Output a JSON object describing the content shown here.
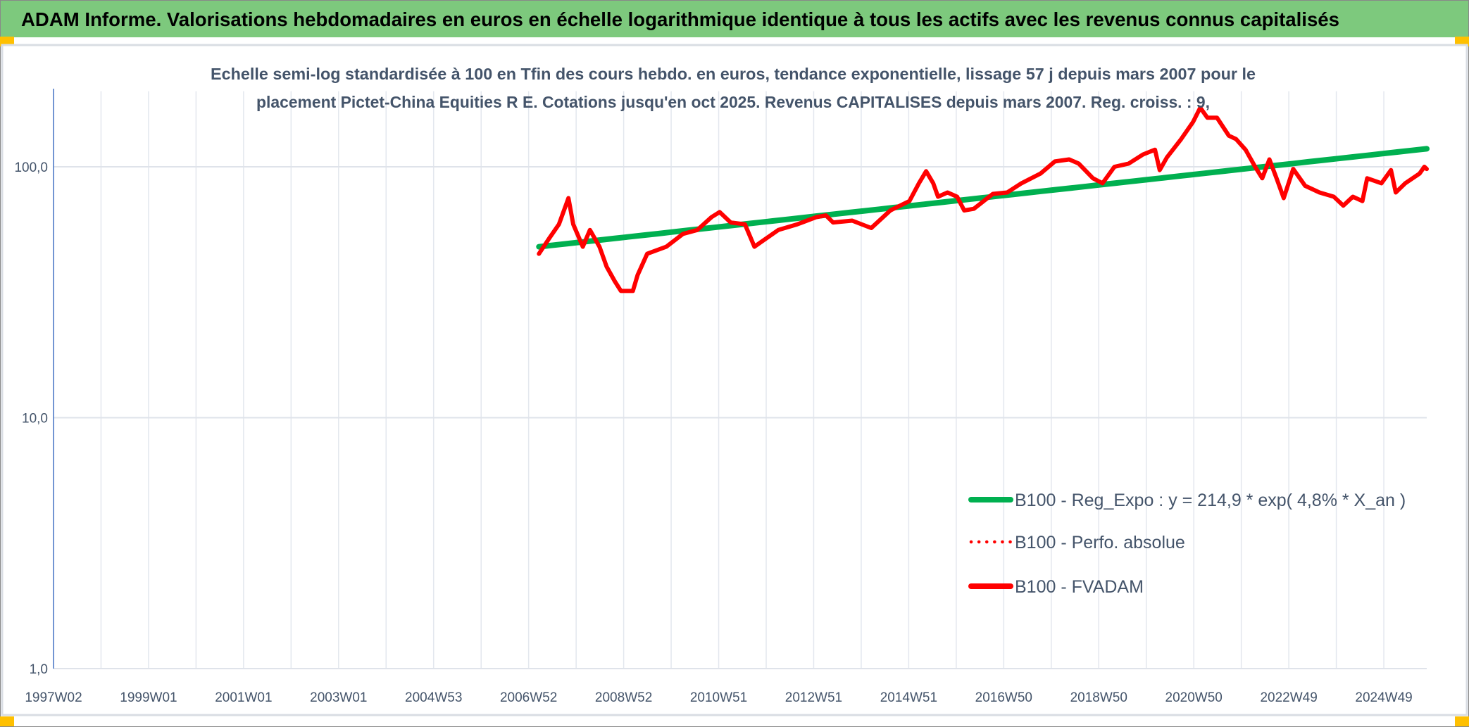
{
  "header": {
    "title": "ADAM Informe. Valorisations hebdomadaires en euros en échelle logarithmique identique à tous les actifs avec les revenus connus capitalisés",
    "bg_color": "#7dc97d",
    "corner_color": "#ffc000"
  },
  "chart_data": {
    "type": "line",
    "title_line1": "Echelle semi-log standardisée à 100 en Tfin des cours hebdo. en euros, tendance exponentielle, lissage 57 j depuis mars 2007 pour le",
    "title_line2": "placement Pictet-China Equities R E. Cotations jusqu'en oct 2025. Revenus CAPITALISES depuis mars 2007. Reg. croiss. : 9,",
    "y_scale": "log",
    "ylim": [
      1,
      200
    ],
    "y_ticks": [
      {
        "value": 1,
        "label": "1,0"
      },
      {
        "value": 10,
        "label": "10,0"
      },
      {
        "value": 100,
        "label": "100,0"
      }
    ],
    "xlim_years": [
      1997.0,
      2025.8
    ],
    "x_ticks": [
      "1997W02",
      "1999W01",
      "2001W01",
      "2003W01",
      "2004W53",
      "2006W52",
      "2008W52",
      "2010W51",
      "2012W51",
      "2014W51",
      "2016W50",
      "2018W50",
      "2020W50",
      "2022W49",
      "2024W49"
    ],
    "grid": true,
    "legend_position": "bottom-right",
    "series": [
      {
        "name": "B100 - Reg_Expo : y = 214,9 * exp( 4,8% *  X_an )",
        "color": "#00b050",
        "style": "solid",
        "points": [
          [
            2007.18,
            48
          ],
          [
            2025.8,
            118
          ]
        ]
      },
      {
        "name": "B100 - Perfo. absolue",
        "color": "#ff0000",
        "style": "dotted",
        "points": []
      },
      {
        "name": "B100 - FVADAM",
        "color": "#ff0000",
        "style": "solid",
        "points": [
          [
            2007.18,
            45
          ],
          [
            2007.4,
            52
          ],
          [
            2007.6,
            59
          ],
          [
            2007.8,
            75
          ],
          [
            2007.9,
            59
          ],
          [
            2008.1,
            48
          ],
          [
            2008.25,
            56
          ],
          [
            2008.45,
            48
          ],
          [
            2008.6,
            40
          ],
          [
            2008.77,
            35
          ],
          [
            2008.9,
            32
          ],
          [
            2009.15,
            32
          ],
          [
            2009.25,
            37
          ],
          [
            2009.45,
            45
          ],
          [
            2009.85,
            48
          ],
          [
            2010.2,
            54
          ],
          [
            2010.5,
            56
          ],
          [
            2010.8,
            63
          ],
          [
            2010.97,
            66
          ],
          [
            2011.2,
            60
          ],
          [
            2011.5,
            59
          ],
          [
            2011.7,
            48
          ],
          [
            2011.83,
            50
          ],
          [
            2012.2,
            56
          ],
          [
            2012.6,
            59
          ],
          [
            2013.0,
            63
          ],
          [
            2013.2,
            64
          ],
          [
            2013.35,
            60
          ],
          [
            2013.75,
            61
          ],
          [
            2014.15,
            57
          ],
          [
            2014.55,
            67
          ],
          [
            2014.95,
            73
          ],
          [
            2015.15,
            86
          ],
          [
            2015.3,
            96
          ],
          [
            2015.45,
            86
          ],
          [
            2015.55,
            76
          ],
          [
            2015.75,
            79
          ],
          [
            2015.95,
            76
          ],
          [
            2016.1,
            67
          ],
          [
            2016.3,
            68
          ],
          [
            2016.7,
            78
          ],
          [
            2017.0,
            79
          ],
          [
            2017.3,
            86
          ],
          [
            2017.7,
            94
          ],
          [
            2018.0,
            105
          ],
          [
            2018.3,
            107
          ],
          [
            2018.5,
            103
          ],
          [
            2018.8,
            90
          ],
          [
            2019.0,
            86
          ],
          [
            2019.25,
            100
          ],
          [
            2019.55,
            103
          ],
          [
            2019.85,
            112
          ],
          [
            2020.1,
            117
          ],
          [
            2020.2,
            97
          ],
          [
            2020.35,
            109
          ],
          [
            2020.65,
            129
          ],
          [
            2020.9,
            151
          ],
          [
            2021.05,
            172
          ],
          [
            2021.2,
            157
          ],
          [
            2021.4,
            157
          ],
          [
            2021.65,
            133
          ],
          [
            2021.8,
            129
          ],
          [
            2022.0,
            117
          ],
          [
            2022.2,
            100
          ],
          [
            2022.35,
            90
          ],
          [
            2022.5,
            107
          ],
          [
            2022.65,
            90
          ],
          [
            2022.8,
            75
          ],
          [
            2023.0,
            98
          ],
          [
            2023.25,
            84
          ],
          [
            2023.55,
            79
          ],
          [
            2023.85,
            76
          ],
          [
            2024.05,
            70
          ],
          [
            2024.25,
            76
          ],
          [
            2024.45,
            73
          ],
          [
            2024.55,
            90
          ],
          [
            2024.85,
            86
          ],
          [
            2025.05,
            97
          ],
          [
            2025.15,
            79
          ],
          [
            2025.35,
            86
          ],
          [
            2025.65,
            94
          ],
          [
            2025.75,
            100
          ],
          [
            2025.8,
            98
          ]
        ]
      }
    ]
  }
}
